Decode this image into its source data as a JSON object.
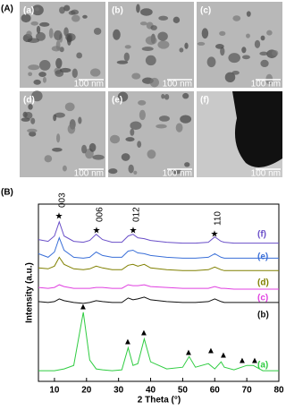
{
  "panel_a": {
    "label": "(A)",
    "images": [
      {
        "label": "(a)",
        "scale_bar": "100 nm"
      },
      {
        "label": "(b)",
        "scale_bar": "100 nm"
      },
      {
        "label": "(c)",
        "scale_bar": "100 nm"
      },
      {
        "label": "(d)",
        "scale_bar": "100 nm"
      },
      {
        "label": "(e)",
        "scale_bar": "100 nm"
      },
      {
        "label": "(f)",
        "scale_bar": "100 nm"
      }
    ]
  },
  "panel_b": {
    "label": "(B)"
  },
  "chart_data": {
    "type": "line",
    "x_label": "2 Theta (°)",
    "y_label": "Intensity (a.u.)",
    "peak_labels": [
      "003",
      "006",
      "012",
      "110"
    ],
    "x": [
      5,
      8,
      10,
      11.5,
      13,
      16,
      19,
      21,
      23,
      25,
      28,
      31,
      33,
      34.5,
      36,
      38,
      40,
      45,
      50,
      52,
      54,
      58,
      60,
      62,
      63,
      66,
      70,
      72,
      75,
      80
    ],
    "xlim": [
      5,
      80
    ],
    "xticks": [
      10,
      20,
      30,
      40,
      50,
      60,
      70,
      80
    ],
    "ylim": [
      0,
      100
    ],
    "series": [
      {
        "name": "(a)",
        "color": "#2ecc40",
        "values": [
          6,
          6,
          6,
          6.5,
          7,
          9,
          39,
          12,
          7,
          6.5,
          6,
          6.5,
          19,
          9,
          10,
          24,
          11,
          7,
          8,
          14,
          8,
          10,
          7,
          11,
          8,
          6.5,
          9,
          9,
          6,
          6
        ]
      },
      {
        "name": "(b)",
        "color": "#111111",
        "values": [
          45,
          44.5,
          45,
          46.5,
          45.5,
          44.5,
          44,
          44.5,
          45.5,
          45,
          44.5,
          44.5,
          47,
          46,
          46.5,
          47.5,
          46,
          45,
          44.5,
          44.5,
          44.5,
          45,
          46.5,
          45,
          44.5,
          44.5,
          44.5,
          44.5,
          44.5,
          44.5
        ]
      },
      {
        "name": "(c)",
        "color": "#e040e0",
        "values": [
          53,
          52.5,
          53,
          54.5,
          53.5,
          52.5,
          52.5,
          52.5,
          53,
          53,
          52.5,
          52.5,
          54.5,
          54,
          54,
          54.5,
          53.5,
          53,
          52.5,
          52.5,
          52.5,
          52.5,
          53.5,
          52.5,
          52.5,
          52,
          52,
          52,
          52,
          52
        ]
      },
      {
        "name": "(d)",
        "color": "#808000",
        "values": [
          64,
          63.5,
          65,
          70,
          66,
          63.5,
          63,
          63.5,
          65,
          64,
          63,
          63,
          65.5,
          66,
          65,
          66,
          64,
          63,
          62.5,
          62.5,
          62.5,
          63,
          64.5,
          63,
          62.5,
          62.5,
          62.5,
          62.5,
          62.5,
          62.5
        ]
      },
      {
        "name": "(e)",
        "color": "#3a6fd8",
        "values": [
          72,
          70,
          73,
          81,
          74,
          70,
          69.5,
          70,
          73,
          71,
          70,
          70,
          73.5,
          74,
          72.5,
          72,
          71,
          70,
          69.5,
          69.5,
          69.5,
          70,
          72,
          70,
          69.5,
          69.5,
          69.5,
          69.5,
          69.5,
          69.5
        ]
      },
      {
        "name": "(f)",
        "color": "#6a4fc8",
        "values": [
          80,
          79,
          82,
          90,
          82,
          79,
          78.5,
          79.5,
          83,
          80,
          78.5,
          78.5,
          82,
          83,
          81,
          80.5,
          79.5,
          78.5,
          78,
          78,
          78,
          78.5,
          81.5,
          79,
          78.5,
          78,
          78,
          78,
          78,
          78
        ]
      }
    ]
  }
}
